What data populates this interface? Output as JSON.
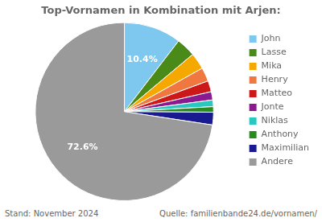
{
  "chart_data": {
    "type": "pie",
    "title": "Top-Vornamen in Kombination mit Arjen:",
    "categories": [
      "John",
      "Lasse",
      "Mika",
      "Henry",
      "Matteo",
      "Jonte",
      "Niklas",
      "Anthony",
      "Maximilian",
      "Andere"
    ],
    "values": [
      10.4,
      3.5,
      3.0,
      2.5,
      2.0,
      1.5,
      1.2,
      1.0,
      2.3,
      72.6
    ],
    "value_labels": [
      "10.4%",
      null,
      null,
      null,
      null,
      null,
      null,
      null,
      null,
      "72.6%"
    ],
    "colors": [
      "#7ec8f0",
      "#4a8a18",
      "#f5a800",
      "#f07840",
      "#cc1818",
      "#8b1a90",
      "#28c8c0",
      "#2a8a20",
      "#1a1a90",
      "#9a9a9a"
    ],
    "legend": "right",
    "annotations": [
      "Stand: November 2024",
      "Quelle: familienbande24.de/vornamen/"
    ]
  }
}
